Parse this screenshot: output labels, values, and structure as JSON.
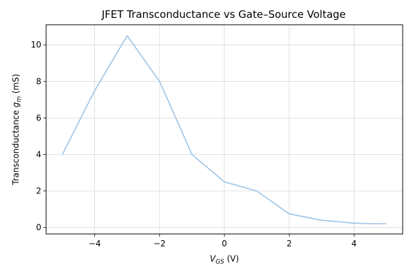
{
  "chart_data": {
    "type": "line",
    "title": "JFET Transconductance vs Gate–Source Voltage",
    "xlabel": {
      "base": "V",
      "sub": "GS",
      "rest": " (V)"
    },
    "ylabel": {
      "before": "Transconductance ",
      "var": "g",
      "sub": "m",
      "rest": " (mS)"
    },
    "xlim": [
      -5.5,
      5.5
    ],
    "ylim": [
      -0.35,
      11.1
    ],
    "xticks": [
      -4,
      -2,
      0,
      2,
      4
    ],
    "xtick_labels": [
      "−4",
      "−2",
      "0",
      "2",
      "4"
    ],
    "yticks": [
      0,
      2,
      4,
      6,
      8,
      10
    ],
    "ytick_labels": [
      "0",
      "2",
      "4",
      "6",
      "8",
      "10"
    ],
    "grid": true,
    "legend": "none",
    "series": [
      {
        "color": "#9dc3e6",
        "x": [
          -5,
          -4,
          -3,
          -2,
          -1,
          0,
          1,
          2,
          3,
          4,
          4.5,
          5
        ],
        "y": [
          4.0,
          7.5,
          10.5,
          8.0,
          4.0,
          2.5,
          2.0,
          0.75,
          0.4,
          0.24,
          0.21,
          0.21
        ]
      }
    ]
  }
}
